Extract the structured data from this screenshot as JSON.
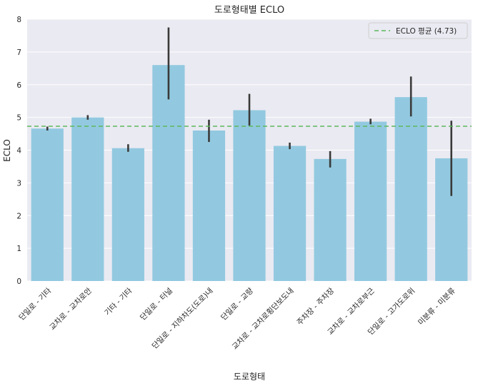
{
  "chart_data": {
    "type": "bar",
    "title": "도로형태별 ECLO",
    "xlabel": "도로형태",
    "ylabel": "ECLO",
    "ylim": [
      0,
      8
    ],
    "yticks": [
      0,
      1,
      2,
      3,
      4,
      5,
      6,
      7,
      8
    ],
    "grid": true,
    "categories": [
      "단일로 - 기타",
      "교차로 - 교차로안",
      "기타 - 기타",
      "단일로 - 터널",
      "단일로 - 지하차도(도로)내",
      "단일로 - 교량",
      "교차로 - 교차로횡단보도내",
      "주차장 - 주차장",
      "교차로 - 교차로부근",
      "단일로 - 고가도로위",
      "미분류 - 미분류"
    ],
    "values": [
      4.66,
      5.0,
      4.06,
      6.6,
      4.6,
      5.22,
      4.13,
      3.73,
      4.87,
      5.62,
      3.75
    ],
    "error_low": [
      4.6,
      4.93,
      3.95,
      5.55,
      4.25,
      4.75,
      4.03,
      3.47,
      4.79,
      5.03,
      2.6
    ],
    "error_high": [
      4.72,
      5.07,
      4.18,
      7.75,
      4.93,
      5.72,
      4.23,
      3.97,
      4.96,
      6.25,
      4.9
    ],
    "bar_color": "#92c9e0",
    "error_color": "#3a3a3a",
    "background_color": "#eaeaf2",
    "reference_line": {
      "value": 4.73,
      "label": "ECLO 평균 (4.73)",
      "color": "#5cb85c",
      "style": "dashed"
    },
    "legend": {
      "position": "top-right",
      "entries": [
        "ECLO 평균 (4.73)"
      ]
    }
  }
}
